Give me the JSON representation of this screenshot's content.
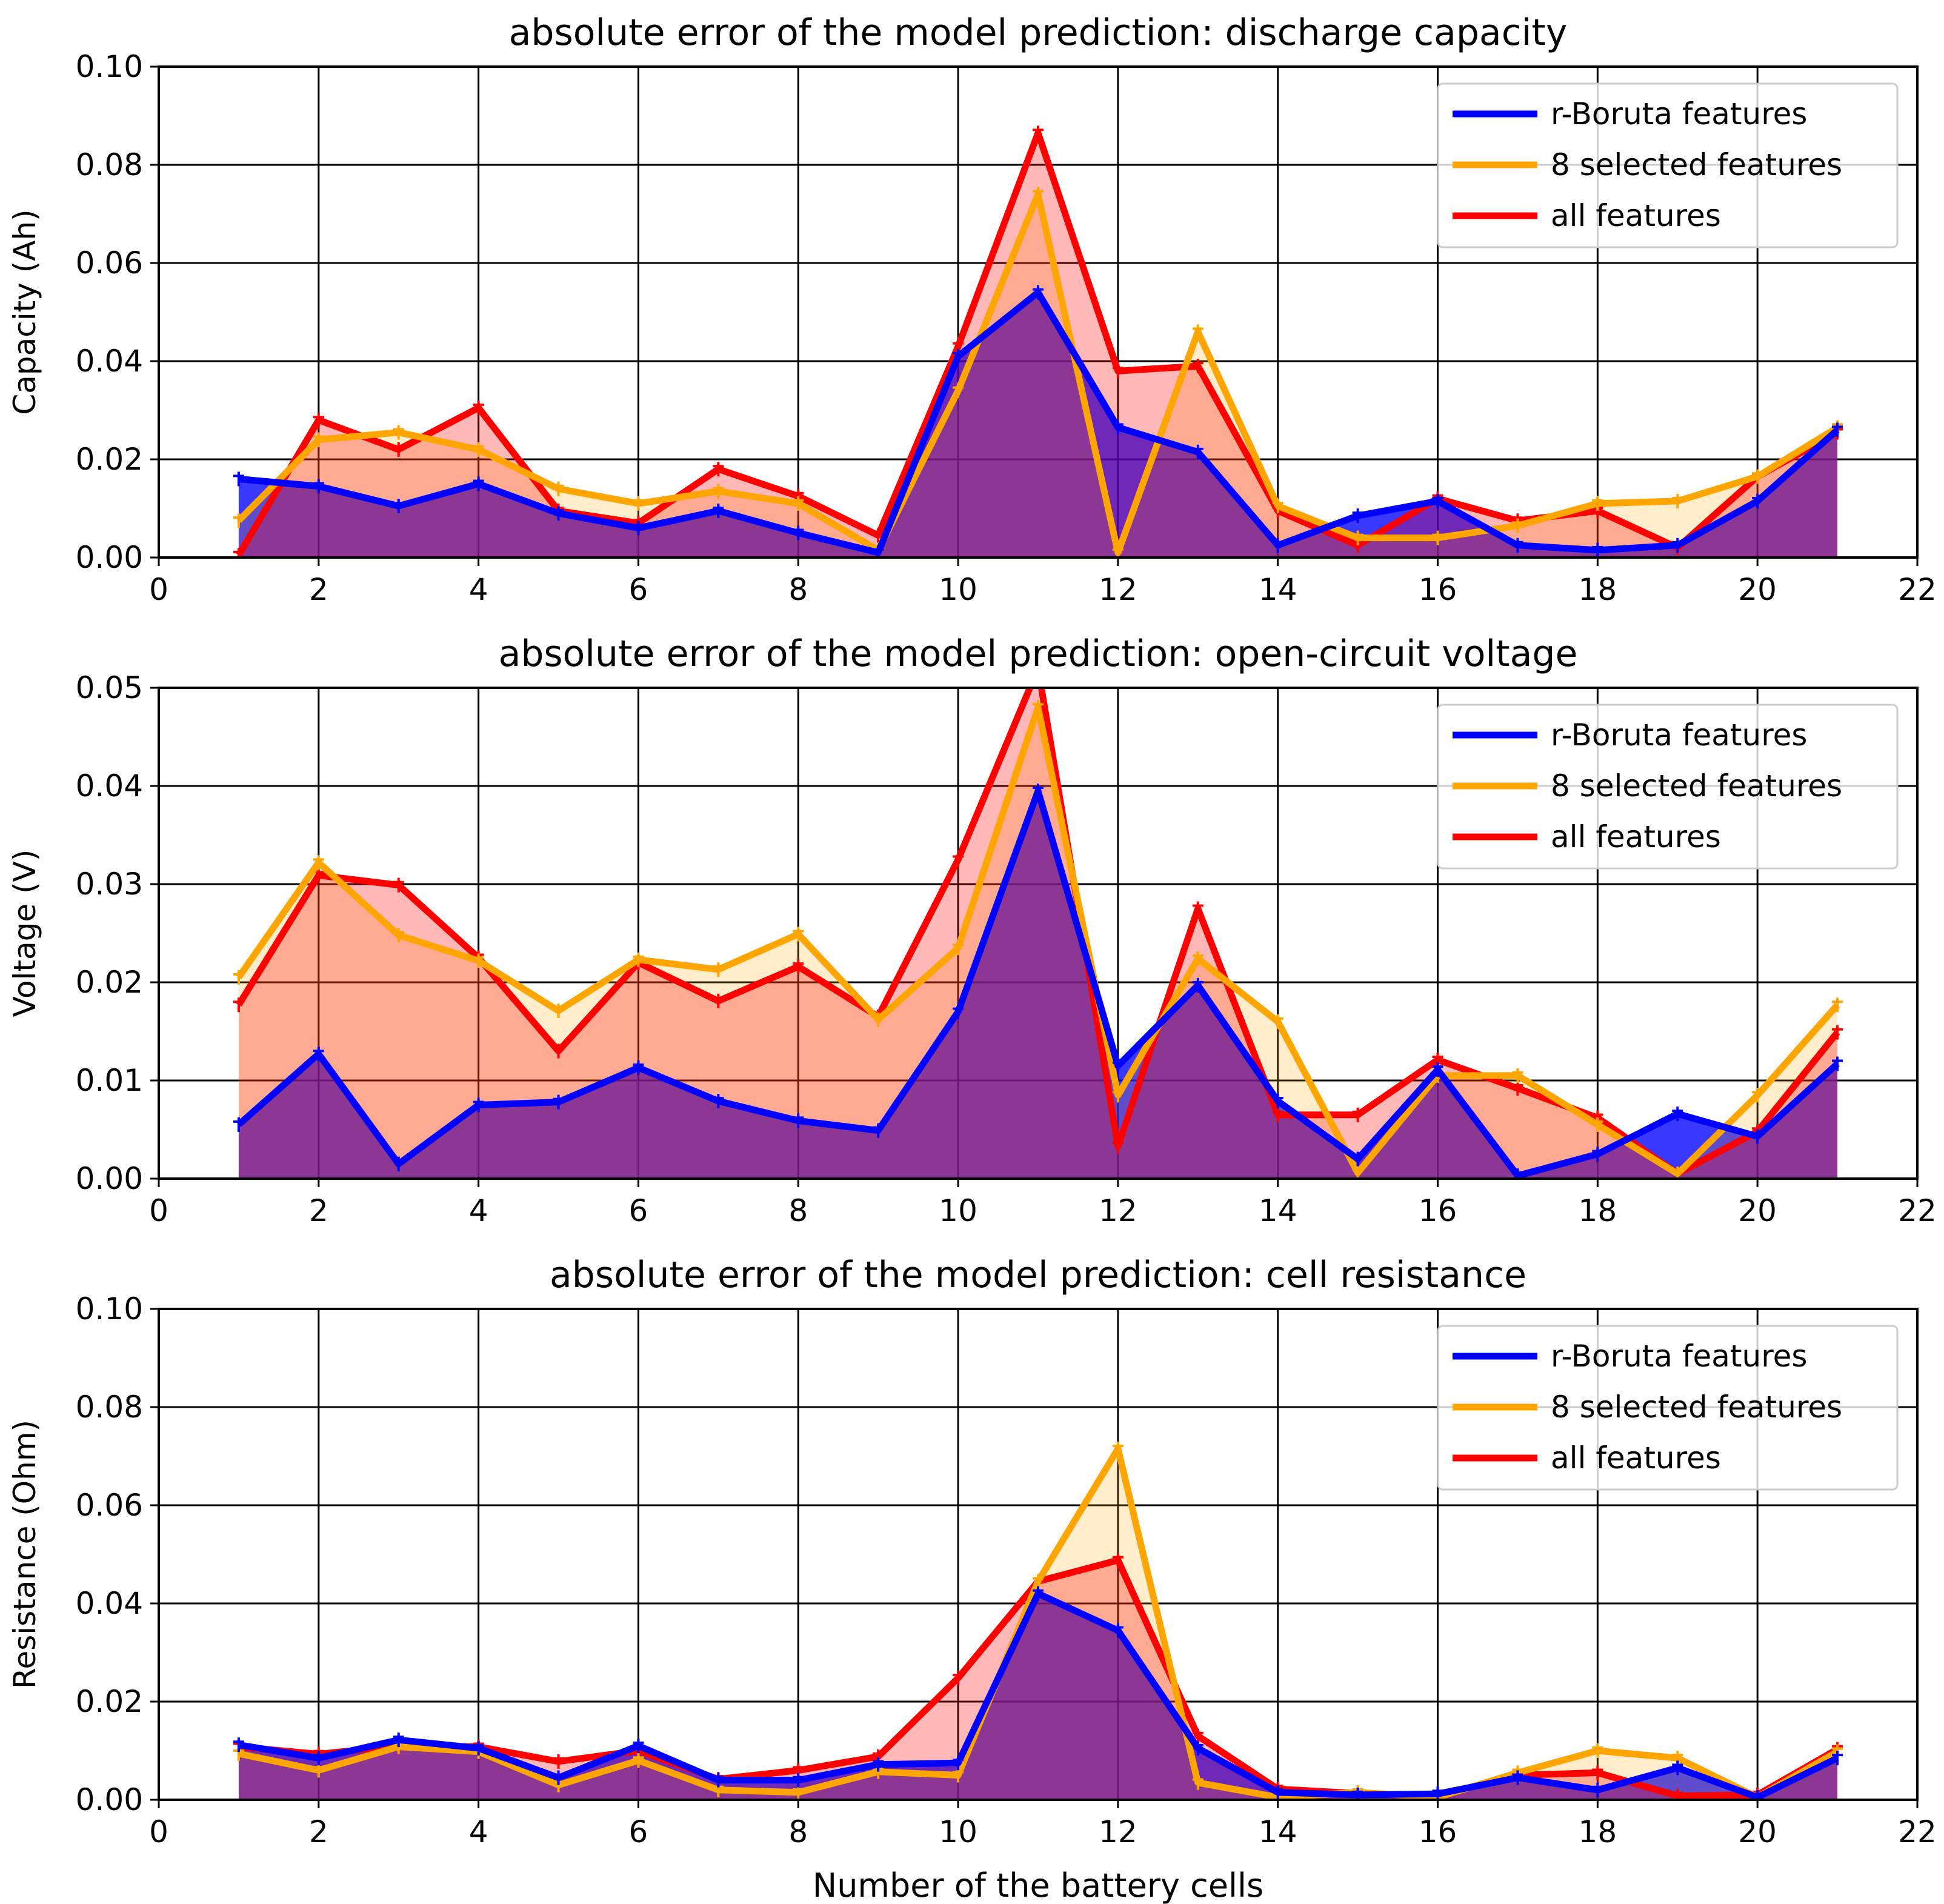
{
  "figure": {
    "xlabel": "Number of the battery cells"
  },
  "colors": {
    "r_boruta": "#0000ff",
    "selected8": "#ffa500",
    "all": "#ff0000",
    "fill_r_boruta": "#0000ff",
    "fill_selected8": "#ffa500",
    "fill_all": "#ff0000",
    "grid": "#000000"
  },
  "chart_data": [
    {
      "type": "line",
      "fill": "area",
      "title": "absolute error of the model prediction: discharge capacity",
      "xlabel": "",
      "ylabel": "Capacity (Ah)",
      "xlim": [
        0,
        22
      ],
      "ylim": [
        0,
        0.1
      ],
      "xticks": [
        0,
        2,
        4,
        6,
        8,
        10,
        12,
        14,
        16,
        18,
        20,
        22
      ],
      "xtick_labels": [
        "0",
        "2",
        "4",
        "6",
        "8",
        "10",
        "12",
        "14",
        "16",
        "18",
        "20",
        "22"
      ],
      "yticks": [
        0,
        0.02,
        0.04,
        0.06,
        0.08,
        0.1
      ],
      "ytick_labels": [
        "0.00",
        "0.02",
        "0.04",
        "0.06",
        "0.08",
        "0.10"
      ],
      "grid": true,
      "legend_position": "top-right",
      "x": [
        1,
        2,
        3,
        4,
        5,
        6,
        7,
        8,
        9,
        10,
        11,
        12,
        13,
        14,
        15,
        16,
        17,
        18,
        19,
        20,
        21
      ],
      "series": [
        {
          "name": "r-Boruta features",
          "key": "r_boruta",
          "values": [
            0.016,
            0.0145,
            0.0105,
            0.015,
            0.009,
            0.006,
            0.0095,
            0.005,
            0.001,
            0.041,
            0.054,
            0.0265,
            0.0215,
            0.0025,
            0.0085,
            0.0115,
            0.0025,
            0.0015,
            0.0025,
            0.0115,
            0.026
          ]
        },
        {
          "name": "8 selected features",
          "key": "selected8",
          "values": [
            0.0075,
            0.024,
            0.0255,
            0.022,
            0.014,
            0.011,
            0.0135,
            0.011,
            0.0015,
            0.034,
            0.074,
            0.001,
            0.046,
            0.0105,
            0.004,
            0.004,
            0.0065,
            0.011,
            0.0115,
            0.0165,
            0.0265
          ]
        },
        {
          "name": "all features",
          "key": "all",
          "values": [
            0.0005,
            0.028,
            0.022,
            0.0305,
            0.0095,
            0.007,
            0.018,
            0.0125,
            0.0045,
            0.043,
            0.0865,
            0.038,
            0.039,
            0.0095,
            0.0025,
            0.012,
            0.0075,
            0.0095,
            0.002,
            0.0165,
            0.0255
          ]
        }
      ]
    },
    {
      "type": "line",
      "fill": "area",
      "title": "absolute error of the model prediction: open-circuit voltage",
      "xlabel": "",
      "ylabel": "Voltage (V)",
      "xlim": [
        0,
        22
      ],
      "ylim": [
        0,
        0.05
      ],
      "xticks": [
        0,
        2,
        4,
        6,
        8,
        10,
        12,
        14,
        16,
        18,
        20,
        22
      ],
      "xtick_labels": [
        "0",
        "2",
        "4",
        "6",
        "8",
        "10",
        "12",
        "14",
        "16",
        "18",
        "20",
        "22"
      ],
      "yticks": [
        0,
        0.01,
        0.02,
        0.03,
        0.04,
        0.05
      ],
      "ytick_labels": [
        "0.00",
        "0.01",
        "0.02",
        "0.03",
        "0.04",
        "0.05"
      ],
      "grid": true,
      "legend_position": "top-right",
      "x": [
        1,
        2,
        3,
        4,
        5,
        6,
        7,
        8,
        9,
        10,
        11,
        12,
        13,
        14,
        15,
        16,
        17,
        18,
        19,
        20,
        21
      ],
      "series": [
        {
          "name": "r-Boruta features",
          "key": "r_boruta",
          "values": [
            0.0055,
            0.0127,
            0.0015,
            0.0075,
            0.0078,
            0.0113,
            0.0079,
            0.0059,
            0.0049,
            0.017,
            0.0395,
            0.0115,
            0.0197,
            0.0079,
            0.002,
            0.0111,
            0.0003,
            0.0025,
            0.0066,
            0.0043,
            0.0117
          ]
        },
        {
          "name": "8 selected features",
          "key": "selected8",
          "values": [
            0.0205,
            0.0322,
            0.0248,
            0.0222,
            0.0171,
            0.0223,
            0.0213,
            0.0249,
            0.0162,
            0.0235,
            0.048,
            0.0085,
            0.0224,
            0.016,
            0.0006,
            0.0105,
            0.0105,
            0.0055,
            0.0005,
            0.0085,
            0.0177
          ]
        },
        {
          "name": "all features",
          "key": "all",
          "values": [
            0.0177,
            0.0309,
            0.0299,
            0.0225,
            0.013,
            0.022,
            0.0181,
            0.0216,
            0.0165,
            0.0325,
            0.052,
            0.0033,
            0.0275,
            0.0065,
            0.0065,
            0.0121,
            0.0092,
            0.0062,
            0.0005,
            0.0048,
            0.0149
          ]
        }
      ]
    },
    {
      "type": "line",
      "fill": "area",
      "title": "absolute error of the model prediction: cell resistance",
      "xlabel": "Number of the battery cells",
      "ylabel": "Resistance (Ohm)",
      "xlim": [
        0,
        22
      ],
      "ylim": [
        0,
        0.1
      ],
      "xticks": [
        0,
        2,
        4,
        6,
        8,
        10,
        12,
        14,
        16,
        18,
        20,
        22
      ],
      "xtick_labels": [
        "0",
        "2",
        "4",
        "6",
        "8",
        "10",
        "12",
        "14",
        "16",
        "18",
        "20",
        "22"
      ],
      "yticks": [
        0,
        0.02,
        0.04,
        0.06,
        0.08,
        0.1
      ],
      "ytick_labels": [
        "0.00",
        "0.02",
        "0.04",
        "0.06",
        "0.08",
        "0.10"
      ],
      "grid": true,
      "legend_position": "top-right",
      "x": [
        1,
        2,
        3,
        4,
        5,
        6,
        7,
        8,
        9,
        10,
        11,
        12,
        13,
        14,
        15,
        16,
        17,
        18,
        19,
        20,
        21
      ],
      "series": [
        {
          "name": "r-Boruta features",
          "key": "r_boruta",
          "values": [
            0.0112,
            0.0085,
            0.0122,
            0.0105,
            0.0045,
            0.011,
            0.004,
            0.004,
            0.0072,
            0.0075,
            0.042,
            0.0345,
            0.0105,
            0.0015,
            0.001,
            0.0012,
            0.0045,
            0.002,
            0.0065,
            0.0005,
            0.0085
          ]
        },
        {
          "name": "8 selected features",
          "key": "selected8",
          "values": [
            0.0094,
            0.006,
            0.0108,
            0.0098,
            0.003,
            0.008,
            0.002,
            0.0015,
            0.0057,
            0.005,
            0.0445,
            0.0715,
            0.0035,
            0.0005,
            0.0015,
            0.0005,
            0.0055,
            0.01,
            0.0085,
            0.0005,
            0.0098
          ]
        },
        {
          "name": "all features",
          "key": "all",
          "values": [
            0.0108,
            0.0093,
            0.011,
            0.0108,
            0.0078,
            0.01,
            0.0042,
            0.006,
            0.0088,
            0.0248,
            0.0445,
            0.0488,
            0.013,
            0.0022,
            0.0013,
            0.0008,
            0.005,
            0.0055,
            0.0008,
            0.001,
            0.0103
          ]
        }
      ]
    }
  ]
}
